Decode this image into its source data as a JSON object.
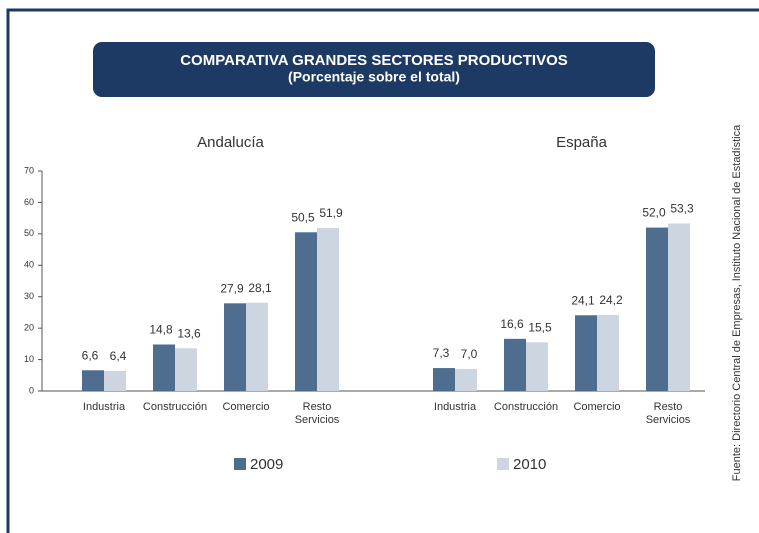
{
  "chart_data": {
    "type": "bar",
    "title": "COMPARATIVA GRANDES SECTORES PRODUCTIVOS",
    "subtitle": "(Porcentaje sobre el total)",
    "source": "Fuente: Directorio Central de Empresas, Instituto Nacional de Estadística",
    "ylim": [
      0,
      70
    ],
    "yticks": [
      0,
      10,
      20,
      30,
      40,
      50,
      60,
      70
    ],
    "panels": [
      {
        "title": "Andalucía",
        "categories": [
          "Industria",
          "Construcción",
          "Comercio",
          "Resto Servicios"
        ]
      },
      {
        "title": "España",
        "categories": [
          "Industria",
          "Construcción",
          "Comercio",
          "Resto Servicios"
        ]
      }
    ],
    "series": [
      {
        "name": "2009",
        "color": "#4f6d8f",
        "values": [
          [
            6.6,
            14.8,
            27.9,
            50.5
          ],
          [
            7.3,
            16.6,
            24.1,
            52.0
          ]
        ],
        "value_labels": [
          [
            "6,6",
            "14,8",
            "27,9",
            "50,5"
          ],
          [
            "7,3",
            "16,6",
            "24,1",
            "52,0"
          ]
        ]
      },
      {
        "name": "2010",
        "color": "#cdd6e0",
        "values": [
          [
            6.4,
            13.6,
            28.1,
            51.9
          ],
          [
            7.0,
            15.5,
            24.2,
            53.3
          ]
        ],
        "value_labels": [
          [
            "6,4",
            "13,6",
            "28,1",
            "51,9"
          ],
          [
            "7,0",
            "15,5",
            "24,2",
            "53,3"
          ]
        ]
      }
    ]
  }
}
